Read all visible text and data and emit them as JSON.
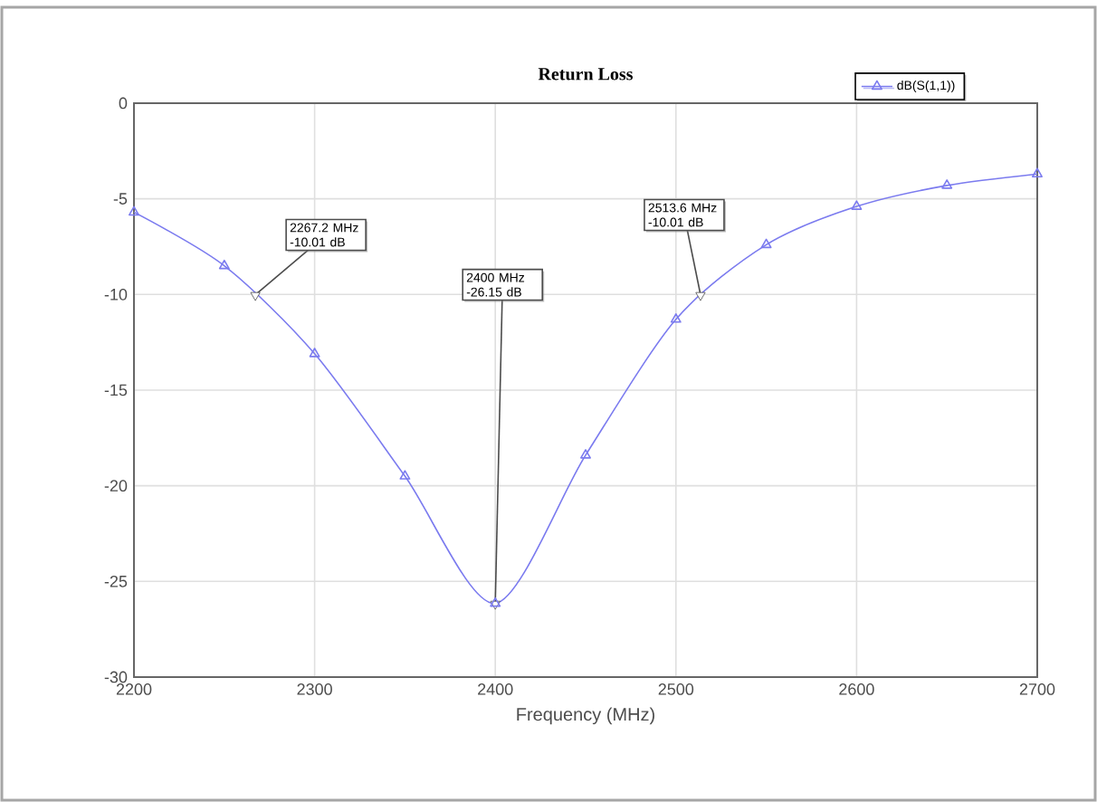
{
  "chart_data": {
    "type": "line",
    "title": "Return Loss",
    "xlabel": "Frequency (MHz)",
    "x": [
      2200,
      2250,
      2300,
      2350,
      2400,
      2450,
      2500,
      2550,
      2600,
      2650,
      2700
    ],
    "series": [
      {
        "name": "dB(S(1,1))",
        "color": "#7b7bef",
        "values": [
          -5.7,
          -8.5,
          -13.1,
          -19.5,
          -26.15,
          -18.4,
          -11.3,
          -7.4,
          -5.4,
          -4.3,
          -3.7
        ]
      }
    ],
    "xlim": [
      2200,
      2700
    ],
    "ylim": [
      -30,
      0
    ],
    "xticks": [
      2200,
      2300,
      2400,
      2500,
      2600,
      2700
    ],
    "yticks": [
      -30,
      -25,
      -20,
      -15,
      -10,
      -5,
      0
    ],
    "annotations": [
      {
        "text": "2267.2 MHz -10.01 dB",
        "x": 2267.2,
        "y": -10.01
      },
      {
        "text": "2400 MHz -26.15 dB",
        "x": 2400,
        "y": -26.15
      },
      {
        "text": "2513.6 MHz -10.01 dB",
        "x": 2513.6,
        "y": -10.01
      }
    ],
    "grid": true,
    "legend": "top right",
    "marker": "triangle",
    "line_style": "solid"
  }
}
